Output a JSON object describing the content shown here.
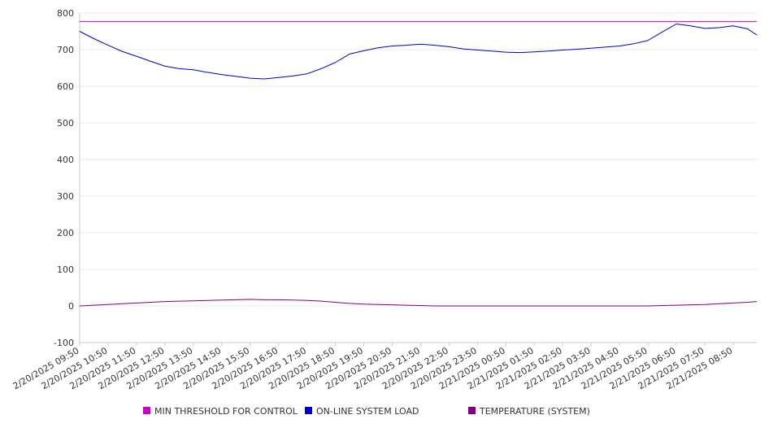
{
  "chart_data": {
    "type": "line",
    "title": "",
    "xlabel": "",
    "ylabel": "",
    "ylim": [
      -100,
      800
    ],
    "yticks": [
      800,
      700,
      600,
      500,
      400,
      300,
      200,
      100,
      0,
      -100
    ],
    "xlim": [
      "2/20/2025 09:50",
      "2/21/2025 09:40"
    ],
    "x_tick_labels": [
      "2/20/2025 09:50",
      "2/20/2025 10:50",
      "2/20/2025 11:50",
      "2/20/2025 12:50",
      "2/20/2025 13:50",
      "2/20/2025 14:50",
      "2/20/2025 15:50",
      "2/20/2025 16:50",
      "2/20/2025 17:50",
      "2/20/2025 18:50",
      "2/20/2025 19:50",
      "2/20/2025 20:50",
      "2/20/2025 21:50",
      "2/20/2025 22:50",
      "2/20/2025 23:50",
      "2/21/2025 00:50",
      "2/21/2025 01:50",
      "2/21/2025 02:50",
      "2/21/2025 03:50",
      "2/21/2025 04:50",
      "2/21/2025 05:50",
      "2/21/2025 06:50",
      "2/21/2025 07:50",
      "2/21/2025 08:50"
    ],
    "grid": true,
    "legend_position": "bottom",
    "x": [
      "2/20/2025 09:50",
      "2/20/2025 10:20",
      "2/20/2025 10:50",
      "2/20/2025 11:20",
      "2/20/2025 11:50",
      "2/20/2025 12:20",
      "2/20/2025 12:50",
      "2/20/2025 13:20",
      "2/20/2025 13:50",
      "2/20/2025 14:20",
      "2/20/2025 14:50",
      "2/20/2025 15:20",
      "2/20/2025 15:50",
      "2/20/2025 16:20",
      "2/20/2025 16:50",
      "2/20/2025 17:20",
      "2/20/2025 17:50",
      "2/20/2025 18:20",
      "2/20/2025 18:50",
      "2/20/2025 19:20",
      "2/20/2025 19:50",
      "2/20/2025 20:20",
      "2/20/2025 20:50",
      "2/20/2025 21:20",
      "2/20/2025 21:50",
      "2/20/2025 22:20",
      "2/20/2025 22:50",
      "2/20/2025 23:20",
      "2/20/2025 23:50",
      "2/21/2025 00:20",
      "2/21/2025 00:50",
      "2/21/2025 01:20",
      "2/21/2025 01:50",
      "2/21/2025 02:20",
      "2/21/2025 02:50",
      "2/21/2025 03:20",
      "2/21/2025 03:50",
      "2/21/2025 04:20",
      "2/21/2025 04:50",
      "2/21/2025 05:20",
      "2/21/2025 05:50",
      "2/21/2025 06:20",
      "2/21/2025 06:50",
      "2/21/2025 07:20",
      "2/21/2025 07:50",
      "2/21/2025 08:20",
      "2/21/2025 08:50",
      "2/21/2025 09:20",
      "2/21/2025 09:40"
    ],
    "series": [
      {
        "name": "MIN THRESHOLD FOR CONTROL",
        "color": "#cc00cc",
        "values": [
          777,
          777,
          777,
          777,
          777,
          777,
          777,
          777,
          777,
          777,
          777,
          777,
          777,
          777,
          777,
          777,
          777,
          777,
          777,
          777,
          777,
          777,
          777,
          777,
          777,
          777,
          777,
          777,
          777,
          777,
          777,
          777,
          777,
          777,
          777,
          777,
          777,
          777,
          777,
          777,
          777,
          777,
          777,
          777,
          777,
          777,
          777,
          777,
          777
        ]
      },
      {
        "name": "ON-LINE SYSTEM LOAD",
        "color": "#0000cc",
        "values": [
          750,
          730,
          712,
          695,
          682,
          668,
          655,
          648,
          645,
          638,
          632,
          627,
          622,
          620,
          624,
          628,
          634,
          648,
          665,
          688,
          697,
          705,
          710,
          712,
          715,
          712,
          708,
          702,
          699,
          696,
          693,
          692,
          694,
          696,
          699,
          701,
          704,
          707,
          710,
          716,
          725,
          748,
          770,
          765,
          758,
          760,
          765,
          757,
          740
        ]
      },
      {
        "name": "TEMPERATURE (SYSTEM)",
        "color": "#800080",
        "values": [
          0,
          2,
          4,
          6,
          8,
          10,
          12,
          13,
          14,
          15,
          16,
          17,
          18,
          17,
          17,
          16,
          15,
          13,
          10,
          7,
          5,
          4,
          3,
          2,
          1,
          0,
          0,
          0,
          0,
          0,
          0,
          0,
          0,
          0,
          0,
          0,
          0,
          0,
          0,
          0,
          0,
          1,
          2,
          3,
          4,
          6,
          8,
          10,
          12
        ]
      }
    ]
  }
}
